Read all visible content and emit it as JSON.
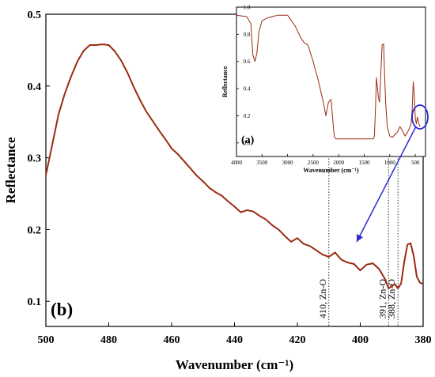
{
  "chart_data": [
    {
      "type": "line",
      "panel_label": "(b)",
      "xlabel": "Wavenumber",
      "xlabel_unit": "(cm⁻¹)",
      "ylabel": "Reflectance",
      "xlim": [
        500,
        380
      ],
      "ylim": [
        0.065,
        0.5
      ],
      "x_ticks": [
        500,
        480,
        460,
        440,
        420,
        400,
        380
      ],
      "y_ticks": [
        0.1,
        0.2,
        0.3,
        0.4,
        0.5
      ],
      "series": [
        {
          "color": "#9b2a12",
          "x": [
            500,
            498,
            496,
            494,
            492,
            490,
            488,
            486,
            484,
            482,
            480,
            478,
            476,
            474,
            472,
            470,
            468,
            466,
            464,
            462,
            460,
            458,
            456,
            454,
            452,
            450,
            448,
            446,
            444,
            442,
            440,
            438,
            436,
            434,
            432,
            430,
            428,
            426,
            424,
            422,
            420,
            418,
            416,
            414,
            412,
            410,
            408,
            406,
            404,
            402,
            400,
            398,
            396,
            394,
            392,
            391,
            390,
            389,
            388,
            387,
            386,
            385,
            384,
            383,
            382,
            381,
            380
          ],
          "y": [
            0.276,
            0.318,
            0.36,
            0.389,
            0.413,
            0.434,
            0.449,
            0.457,
            0.457,
            0.458,
            0.457,
            0.448,
            0.435,
            0.418,
            0.398,
            0.38,
            0.364,
            0.351,
            0.338,
            0.326,
            0.313,
            0.305,
            0.295,
            0.285,
            0.275,
            0.267,
            0.258,
            0.252,
            0.247,
            0.239,
            0.232,
            0.224,
            0.227,
            0.225,
            0.219,
            0.214,
            0.206,
            0.2,
            0.191,
            0.183,
            0.188,
            0.18,
            0.177,
            0.171,
            0.165,
            0.162,
            0.168,
            0.158,
            0.154,
            0.152,
            0.143,
            0.151,
            0.153,
            0.145,
            0.13,
            0.118,
            0.121,
            0.124,
            0.118,
            0.125,
            0.155,
            0.179,
            0.181,
            0.163,
            0.134,
            0.126,
            0.124
          ]
        }
      ],
      "annotations": [
        {
          "x": 410,
          "text": "410, Zn-O"
        },
        {
          "x": 391,
          "text": "391, Zn-O"
        },
        {
          "x": 388,
          "text": "388, Zn-O"
        }
      ]
    },
    {
      "type": "line",
      "panel_label": "(a)",
      "xlabel": "Wavenumber (cm⁻¹)",
      "ylabel": "Reflectance",
      "xlim": [
        4000,
        300
      ],
      "ylim": [
        -0.1,
        1.0
      ],
      "x_ticks": [
        4000,
        3500,
        3000,
        2500,
        2000,
        1500,
        1000,
        500
      ],
      "y_ticks": [
        "0.0",
        "0.2",
        "0.4",
        "0.6",
        "0.8",
        "1.0"
      ],
      "series": [
        {
          "color": "#9b2a12",
          "x": [
            4000,
            3800,
            3720,
            3680,
            3640,
            3600,
            3560,
            3500,
            3400,
            3300,
            3200,
            3000,
            2850,
            2750,
            2680,
            2600,
            2500,
            2400,
            2300,
            2250,
            2200,
            2150,
            2120,
            2100,
            2080,
            2050,
            2000,
            1900,
            1700,
            1500,
            1420,
            1360,
            1320,
            1300,
            1280,
            1260,
            1240,
            1220,
            1200,
            1180,
            1150,
            1120,
            1100,
            1080,
            1050,
            1000,
            950,
            900,
            850,
            800,
            750,
            700,
            650,
            600,
            580,
            560,
            540,
            520,
            500,
            480,
            460,
            440,
            420,
            400
          ],
          "y": [
            0.94,
            0.93,
            0.88,
            0.65,
            0.6,
            0.66,
            0.82,
            0.9,
            0.92,
            0.93,
            0.94,
            0.94,
            0.86,
            0.78,
            0.74,
            0.72,
            0.6,
            0.46,
            0.3,
            0.2,
            0.3,
            0.32,
            0.2,
            0.1,
            0.04,
            0.03,
            0.03,
            0.03,
            0.03,
            0.03,
            0.03,
            0.03,
            0.03,
            0.05,
            0.25,
            0.48,
            0.4,
            0.33,
            0.3,
            0.47,
            0.72,
            0.73,
            0.5,
            0.3,
            0.12,
            0.05,
            0.04,
            0.06,
            0.08,
            0.12,
            0.09,
            0.05,
            0.08,
            0.12,
            0.15,
            0.25,
            0.45,
            0.35,
            0.18,
            0.14,
            0.19,
            0.16,
            0.13,
            0.12
          ]
        }
      ]
    }
  ]
}
